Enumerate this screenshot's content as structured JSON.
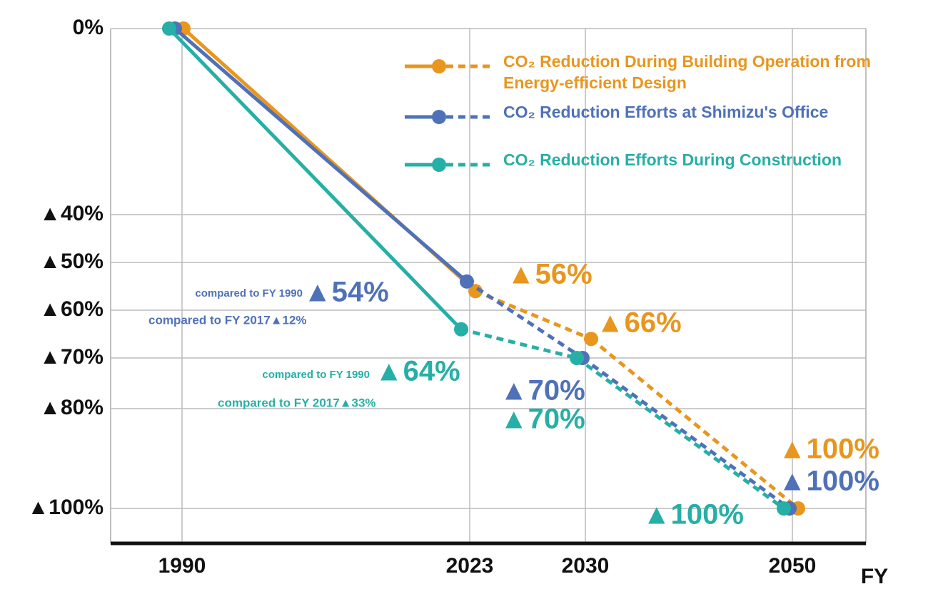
{
  "chart_data": {
    "type": "line",
    "x_label": "FY",
    "categories": [
      "1990",
      "2023",
      "2030",
      "2050"
    ],
    "ylim": [
      -107,
      0
    ],
    "yticks": [
      {
        "value": 0,
        "label": "0%"
      },
      {
        "value": -40,
        "label": "▲40%"
      },
      {
        "value": -50,
        "label": "▲50%"
      },
      {
        "value": -60,
        "label": "▲60%"
      },
      {
        "value": -70,
        "label": "▲70%"
      },
      {
        "value": -80,
        "label": "▲80%"
      },
      {
        "value": -100,
        "label": "▲100%"
      }
    ],
    "grid": true,
    "series": [
      {
        "name": "CO₂ Reduction During Building Operation from Energy-efficient Design",
        "color": "#e8961e",
        "values": [
          0,
          -56,
          -66,
          -100
        ],
        "value_labels": [
          null,
          "▲56%",
          "▲66%",
          "▲100%"
        ]
      },
      {
        "name": "CO₂ Reduction Efforts at Shimizu's Office",
        "color": "#4f71b8",
        "values": [
          0,
          -54,
          -70,
          -100
        ],
        "value_labels": [
          null,
          "▲54%",
          "▲70%",
          "▲100%"
        ],
        "notes": [
          "compared to FY 1990",
          "compared to FY 2017▲12%"
        ]
      },
      {
        "name": "CO₂ Reduction Efforts During Construction",
        "color": "#26afa6",
        "values": [
          0,
          -64,
          -70,
          -100
        ],
        "value_labels": [
          null,
          "▲64%",
          "▲70%",
          "▲100%"
        ],
        "notes": [
          "compared to FY 1990",
          "compared to FY 2017▲33%"
        ]
      }
    ]
  }
}
